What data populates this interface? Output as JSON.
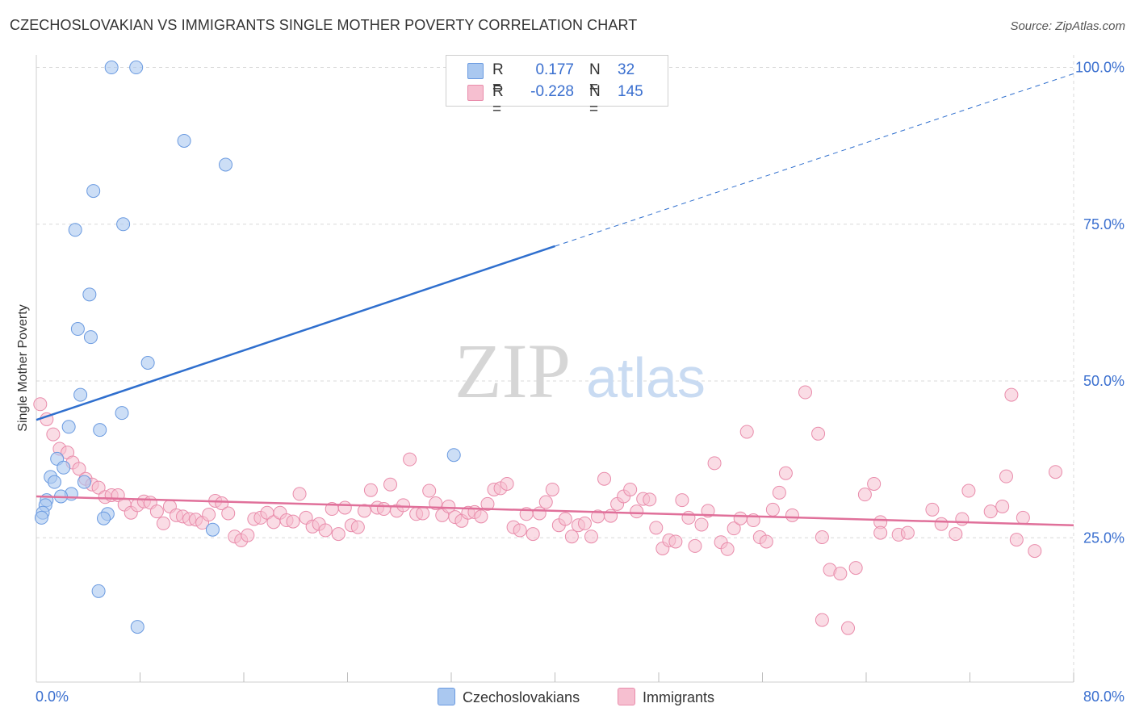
{
  "title": "CZECHOSLOVAKIAN VS IMMIGRANTS SINGLE MOTHER POVERTY CORRELATION CHART",
  "source": "Source: ZipAtlas.com",
  "watermark": {
    "zip": "ZIP",
    "atlas": "atlas"
  },
  "colors": {
    "blue_fill": "#aac8f0",
    "blue_stroke": "#6a9ae0",
    "blue_line": "#2f6fce",
    "pink_fill": "#f6bfd0",
    "pink_stroke": "#e98cab",
    "pink_line": "#e0709a",
    "axis_text": "#3a6fcf",
    "grid": "#d8d8d8"
  },
  "legend_top": {
    "rows": [
      {
        "r_label": "R =",
        "r_value": "0.177",
        "n_label": "N =",
        "n_value": "32",
        "swatch": "blue"
      },
      {
        "r_label": "R =",
        "r_value": "-0.228",
        "n_label": "N =",
        "n_value": "145",
        "swatch": "pink"
      }
    ]
  },
  "legend_bottom": {
    "items": [
      {
        "label": "Czechoslovakians",
        "swatch": "blue"
      },
      {
        "label": "Immigrants",
        "swatch": "pink"
      }
    ]
  },
  "chart_data": {
    "type": "scatter",
    "title": "CZECHOSLOVAKIAN VS IMMIGRANTS SINGLE MOTHER POVERTY CORRELATION CHART",
    "xlabel": "",
    "ylabel": "Single Mother Poverty",
    "xlim": [
      0,
      80
    ],
    "ylim": [
      2,
      102
    ],
    "x_tick_labels": [
      "0.0%",
      "80.0%"
    ],
    "y_ticks": [
      25,
      50,
      75,
      100
    ],
    "y_tick_labels": [
      "25.0%",
      "50.0%",
      "75.0%",
      "100.0%"
    ],
    "grid": true,
    "legend_position": "top-center",
    "series": [
      {
        "name": "Czechoslovakians",
        "color": "blue",
        "R": 0.177,
        "N": 32,
        "trend": {
          "x": [
            0,
            40
          ],
          "y": [
            43.8,
            71.5
          ],
          "dashed_to": {
            "x": 80,
            "y": 99
          }
        },
        "points": [
          [
            5.8,
            100
          ],
          [
            7.7,
            100
          ],
          [
            11.4,
            88.3
          ],
          [
            14.6,
            84.5
          ],
          [
            4.4,
            80.3
          ],
          [
            6.7,
            75.0
          ],
          [
            3.0,
            74.1
          ],
          [
            4.1,
            63.8
          ],
          [
            3.2,
            58.3
          ],
          [
            4.2,
            57.0
          ],
          [
            8.6,
            52.9
          ],
          [
            3.4,
            47.8
          ],
          [
            6.6,
            44.9
          ],
          [
            2.5,
            42.7
          ],
          [
            4.9,
            42.2
          ],
          [
            32.2,
            38.2
          ],
          [
            1.6,
            37.6
          ],
          [
            2.1,
            36.2
          ],
          [
            1.1,
            34.7
          ],
          [
            1.4,
            33.9
          ],
          [
            3.7,
            33.9
          ],
          [
            2.7,
            32.0
          ],
          [
            1.9,
            31.6
          ],
          [
            0.8,
            31.0
          ],
          [
            0.7,
            30.2
          ],
          [
            0.5,
            29.0
          ],
          [
            0.4,
            28.2
          ],
          [
            5.5,
            28.8
          ],
          [
            5.2,
            28.1
          ],
          [
            13.6,
            26.3
          ],
          [
            4.8,
            16.5
          ],
          [
            7.8,
            10.8
          ]
        ]
      },
      {
        "name": "Immigrants",
        "color": "pink",
        "R": -0.228,
        "N": 145,
        "trend": {
          "x": [
            0,
            80
          ],
          "y": [
            31.6,
            27.0
          ]
        },
        "points": [
          [
            0.3,
            46.3
          ],
          [
            0.8,
            43.9
          ],
          [
            1.3,
            41.5
          ],
          [
            1.8,
            39.2
          ],
          [
            2.4,
            38.6
          ],
          [
            2.8,
            37.0
          ],
          [
            3.3,
            36.0
          ],
          [
            3.8,
            34.4
          ],
          [
            4.3,
            33.5
          ],
          [
            4.8,
            33.0
          ],
          [
            5.3,
            31.5
          ],
          [
            5.8,
            31.8
          ],
          [
            6.3,
            31.8
          ],
          [
            6.8,
            30.3
          ],
          [
            7.3,
            29.0
          ],
          [
            7.8,
            30.2
          ],
          [
            8.3,
            30.8
          ],
          [
            8.8,
            30.6
          ],
          [
            9.3,
            29.2
          ],
          [
            9.8,
            27.3
          ],
          [
            10.3,
            30.0
          ],
          [
            10.8,
            28.6
          ],
          [
            11.3,
            28.4
          ],
          [
            11.8,
            28.0
          ],
          [
            12.3,
            27.9
          ],
          [
            12.8,
            27.4
          ],
          [
            13.3,
            28.7
          ],
          [
            13.8,
            30.9
          ],
          [
            14.3,
            30.5
          ],
          [
            14.8,
            28.9
          ],
          [
            15.3,
            25.2
          ],
          [
            15.8,
            24.6
          ],
          [
            16.3,
            25.4
          ],
          [
            16.8,
            28.0
          ],
          [
            17.3,
            28.2
          ],
          [
            17.8,
            29.0
          ],
          [
            18.3,
            27.5
          ],
          [
            18.8,
            29.0
          ],
          [
            19.3,
            27.8
          ],
          [
            19.8,
            27.6
          ],
          [
            20.3,
            32.0
          ],
          [
            20.8,
            28.2
          ],
          [
            21.3,
            26.8
          ],
          [
            21.8,
            27.2
          ],
          [
            22.3,
            26.2
          ],
          [
            22.8,
            29.6
          ],
          [
            23.3,
            25.6
          ],
          [
            23.8,
            29.8
          ],
          [
            24.3,
            27.0
          ],
          [
            24.8,
            26.7
          ],
          [
            25.3,
            29.3
          ],
          [
            25.8,
            32.6
          ],
          [
            26.3,
            29.8
          ],
          [
            26.8,
            29.6
          ],
          [
            27.3,
            33.5
          ],
          [
            27.8,
            29.3
          ],
          [
            28.3,
            30.2
          ],
          [
            28.8,
            37.5
          ],
          [
            29.3,
            28.8
          ],
          [
            29.8,
            28.9
          ],
          [
            30.3,
            32.5
          ],
          [
            30.8,
            30.5
          ],
          [
            31.3,
            28.6
          ],
          [
            31.8,
            30.0
          ],
          [
            32.3,
            28.3
          ],
          [
            32.8,
            27.7
          ],
          [
            33.3,
            29.0
          ],
          [
            33.8,
            29.1
          ],
          [
            34.3,
            28.4
          ],
          [
            34.8,
            30.4
          ],
          [
            35.3,
            32.7
          ],
          [
            35.8,
            32.9
          ],
          [
            36.3,
            33.6
          ],
          [
            36.8,
            26.7
          ],
          [
            37.3,
            26.2
          ],
          [
            37.8,
            28.8
          ],
          [
            38.3,
            25.6
          ],
          [
            38.8,
            28.9
          ],
          [
            39.3,
            30.7
          ],
          [
            39.8,
            32.7
          ],
          [
            40.3,
            27.0
          ],
          [
            40.8,
            28.0
          ],
          [
            41.3,
            25.2
          ],
          [
            41.8,
            27.0
          ],
          [
            42.3,
            27.3
          ],
          [
            42.8,
            25.2
          ],
          [
            43.3,
            28.4
          ],
          [
            43.8,
            34.4
          ],
          [
            44.3,
            28.5
          ],
          [
            44.8,
            30.4
          ],
          [
            45.3,
            31.6
          ],
          [
            45.8,
            32.7
          ],
          [
            46.3,
            29.2
          ],
          [
            46.8,
            31.2
          ],
          [
            47.3,
            31.1
          ],
          [
            47.8,
            26.6
          ],
          [
            48.3,
            23.3
          ],
          [
            48.8,
            24.6
          ],
          [
            49.3,
            24.4
          ],
          [
            49.8,
            31.0
          ],
          [
            50.3,
            28.2
          ],
          [
            50.8,
            23.7
          ],
          [
            51.3,
            27.1
          ],
          [
            51.8,
            29.3
          ],
          [
            52.3,
            36.9
          ],
          [
            52.8,
            24.3
          ],
          [
            53.3,
            23.2
          ],
          [
            53.8,
            26.5
          ],
          [
            54.3,
            28.1
          ],
          [
            54.8,
            41.9
          ],
          [
            55.3,
            27.8
          ],
          [
            55.8,
            25.1
          ],
          [
            56.3,
            24.4
          ],
          [
            56.8,
            29.5
          ],
          [
            57.3,
            32.2
          ],
          [
            57.8,
            35.3
          ],
          [
            58.3,
            28.6
          ],
          [
            59.3,
            48.2
          ],
          [
            60.3,
            41.6
          ],
          [
            60.6,
            25.1
          ],
          [
            61.2,
            19.9
          ],
          [
            62.0,
            19.3
          ],
          [
            63.2,
            20.2
          ],
          [
            63.9,
            31.9
          ],
          [
            64.6,
            33.6
          ],
          [
            65.1,
            27.5
          ],
          [
            65.1,
            25.8
          ],
          [
            66.5,
            25.5
          ],
          [
            67.2,
            25.8
          ],
          [
            69.1,
            29.5
          ],
          [
            69.8,
            27.2
          ],
          [
            70.9,
            25.6
          ],
          [
            71.4,
            28.0
          ],
          [
            71.9,
            32.5
          ],
          [
            73.6,
            29.2
          ],
          [
            74.5,
            30.0
          ],
          [
            74.8,
            34.8
          ],
          [
            75.2,
            47.8
          ],
          [
            75.6,
            24.7
          ],
          [
            76.1,
            28.2
          ],
          [
            77.0,
            22.9
          ],
          [
            78.6,
            35.5
          ],
          [
            60.6,
            11.9
          ],
          [
            62.6,
            10.6
          ]
        ]
      }
    ]
  }
}
